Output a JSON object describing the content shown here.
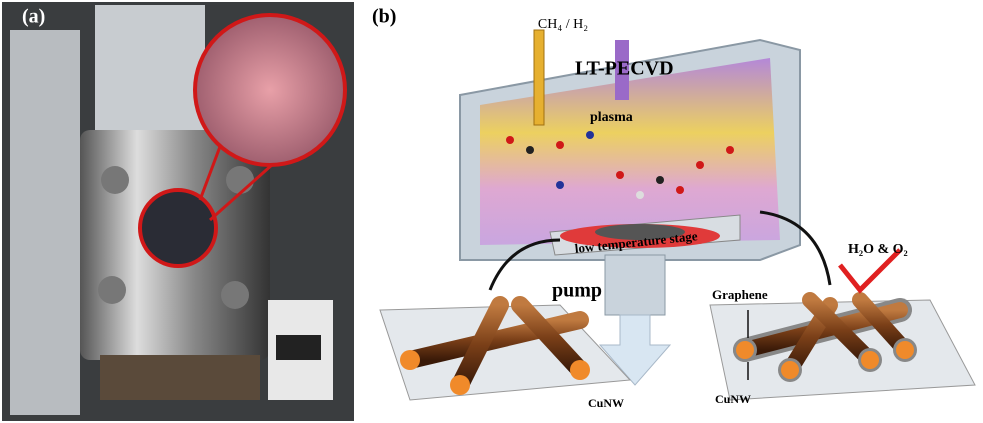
{
  "panels": {
    "a": {
      "label": "(a)"
    },
    "b": {
      "label": "(b)",
      "gas": "CH₄ / H₂",
      "title": "LT-PECVD",
      "plasma": "plasma",
      "stage": "low temperature stage",
      "pump": "pump",
      "graphene": "Graphene",
      "outgas": "H₂O & O₂",
      "cunw_left": "CuNW",
      "cunw_right": "CuNW"
    }
  }
}
